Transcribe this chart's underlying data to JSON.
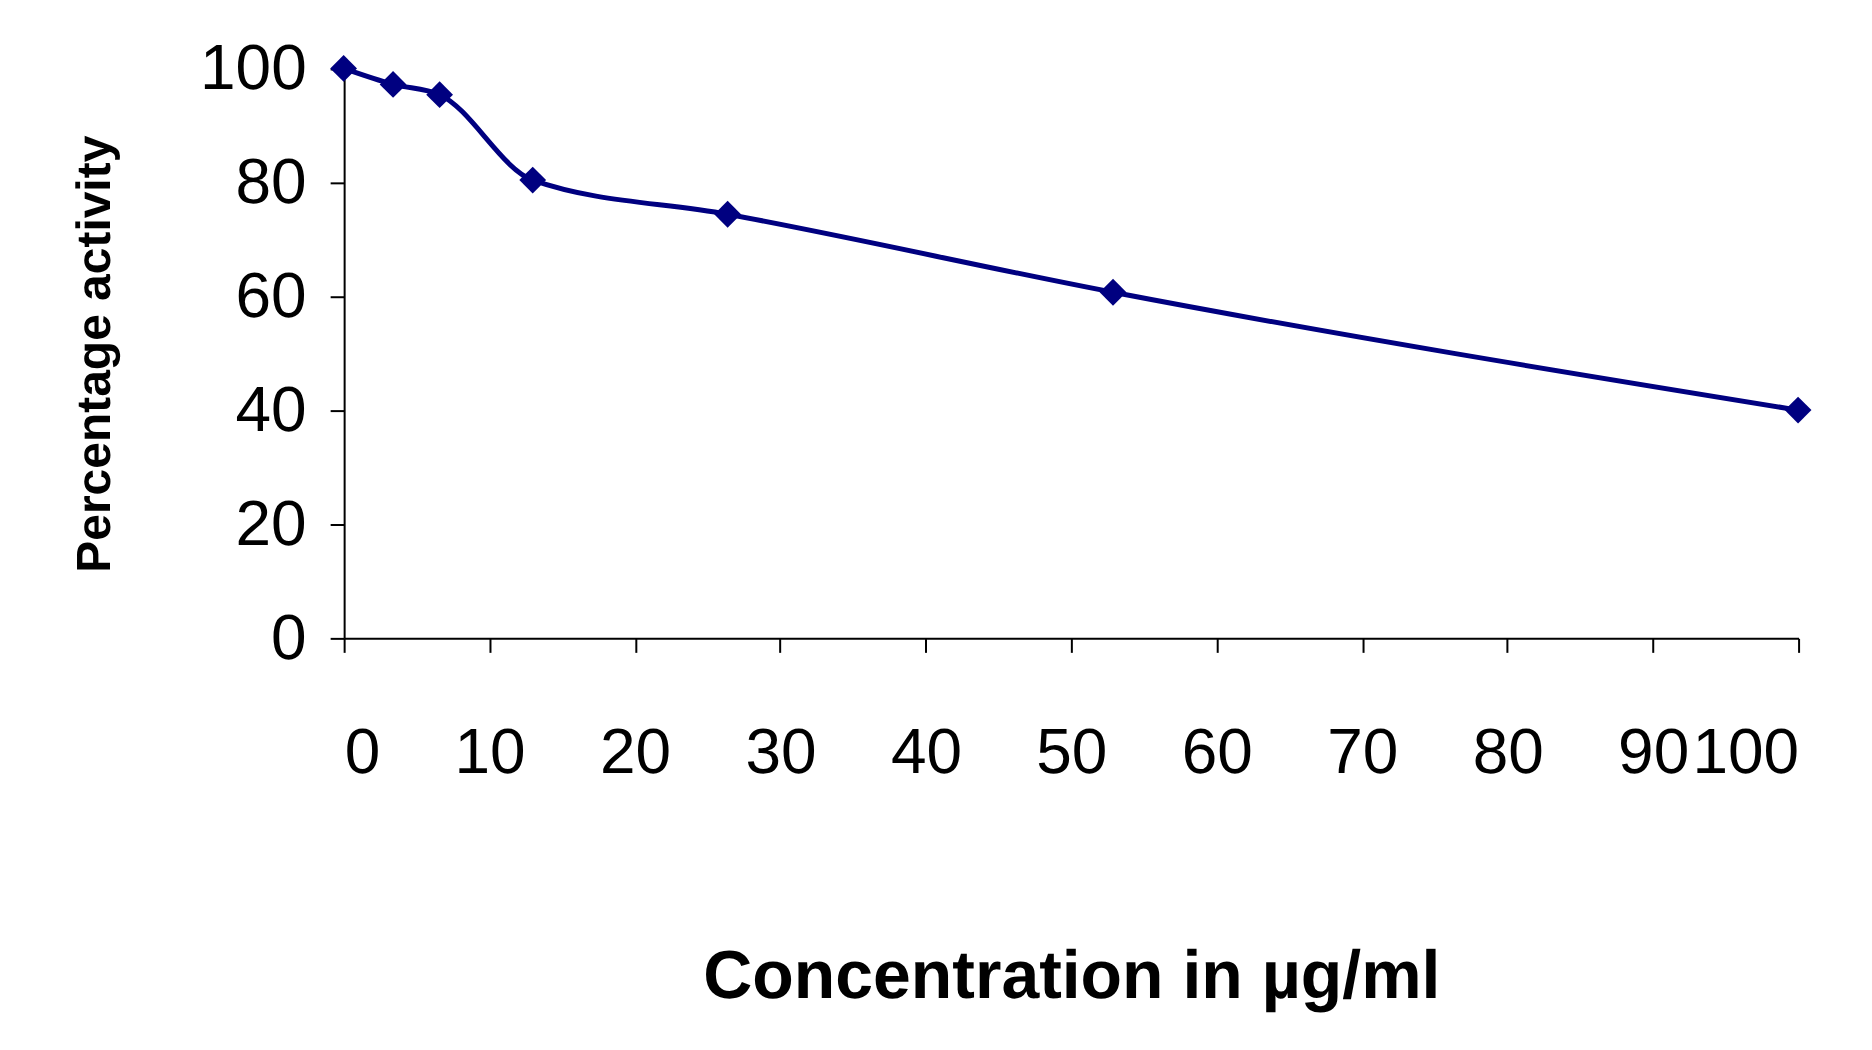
{
  "chart_data": {
    "type": "line",
    "xlabel": "Concentration in µg/ml",
    "ylabel": "Percentage activity",
    "x": [
      0,
      3.4,
      6.6,
      13,
      26.4,
      52.9,
      100
    ],
    "series": [
      {
        "color": "#000080",
        "values": [
          100,
          97.2,
          95.4,
          80.4,
          74.4,
          60.7,
          40
        ]
      }
    ],
    "xlim": [
      0,
      100
    ],
    "xticks": [
      0,
      10,
      20,
      30,
      40,
      50,
      60,
      70,
      80,
      90,
      100
    ],
    "ylim": [
      0,
      100
    ],
    "yticks": [
      0,
      20,
      40,
      60,
      80,
      100
    ],
    "grid": false,
    "marker": "diamond",
    "line_style": "solid"
  }
}
